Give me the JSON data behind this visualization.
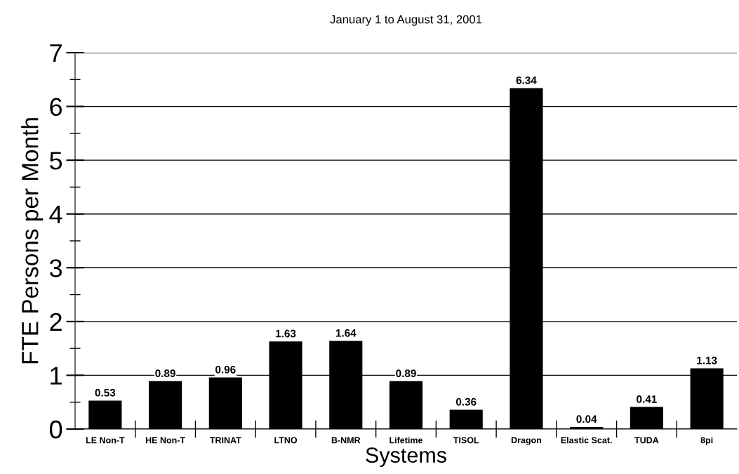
{
  "chart_data": {
    "type": "bar",
    "title": "January 1 to August 31, 2001",
    "xlabel": "Systems",
    "ylabel": "FTE Persons per Month",
    "categories": [
      "LE Non-T",
      "HE Non-T",
      "TRINAT",
      "LTNO",
      "B-NMR",
      "Lifetime",
      "TISOL",
      "Dragon",
      "Elastic Scat.",
      "TUDA",
      "8pi"
    ],
    "values": [
      0.53,
      0.89,
      0.96,
      1.63,
      1.64,
      0.89,
      0.36,
      6.34,
      0.04,
      0.41,
      1.13
    ],
    "color": "#000000",
    "ylim": [
      0,
      7
    ],
    "yticks": [
      0,
      1,
      2,
      3,
      4,
      5,
      6,
      7
    ],
    "grid": "y",
    "data_labels": true,
    "legend": false
  }
}
